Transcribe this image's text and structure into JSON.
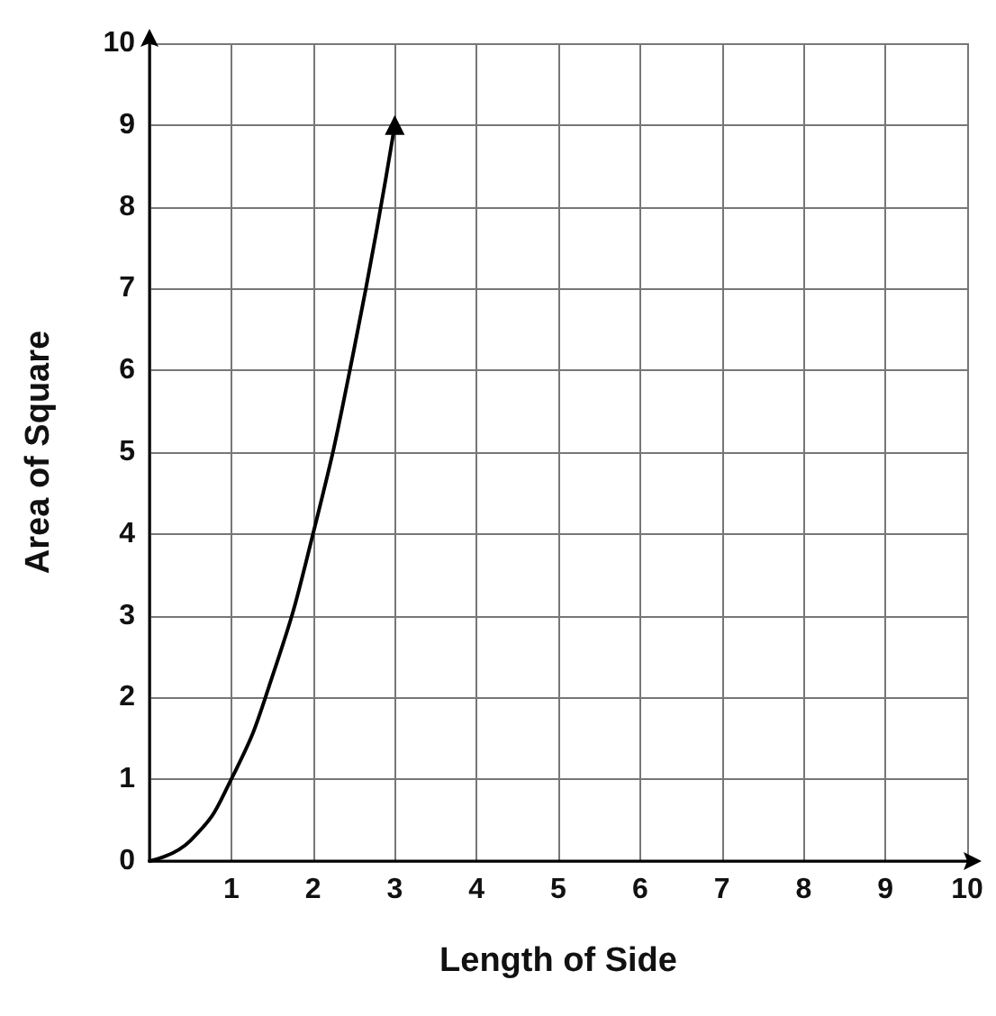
{
  "chart_data": {
    "type": "line",
    "xlabel": "Length of Side",
    "ylabel": "Area of Square",
    "series": [
      {
        "color": "#000000",
        "x": [
          0,
          0.5,
          1,
          1.5,
          2,
          2.5,
          3
        ],
        "values": [
          0,
          0.25,
          1,
          2.25,
          4,
          6.25,
          9
        ]
      }
    ],
    "xlim": [
      0,
      10
    ],
    "ylim": [
      0,
      10
    ],
    "xticks": [
      {
        "value": 0,
        "label": null
      },
      1,
      2,
      3,
      4,
      5,
      6,
      7,
      8,
      9,
      10
    ],
    "yticks": [
      0,
      1,
      2,
      3,
      4,
      5,
      6,
      7,
      8,
      9,
      10
    ],
    "grid": true,
    "marker": "none",
    "line_style": "solid"
  }
}
